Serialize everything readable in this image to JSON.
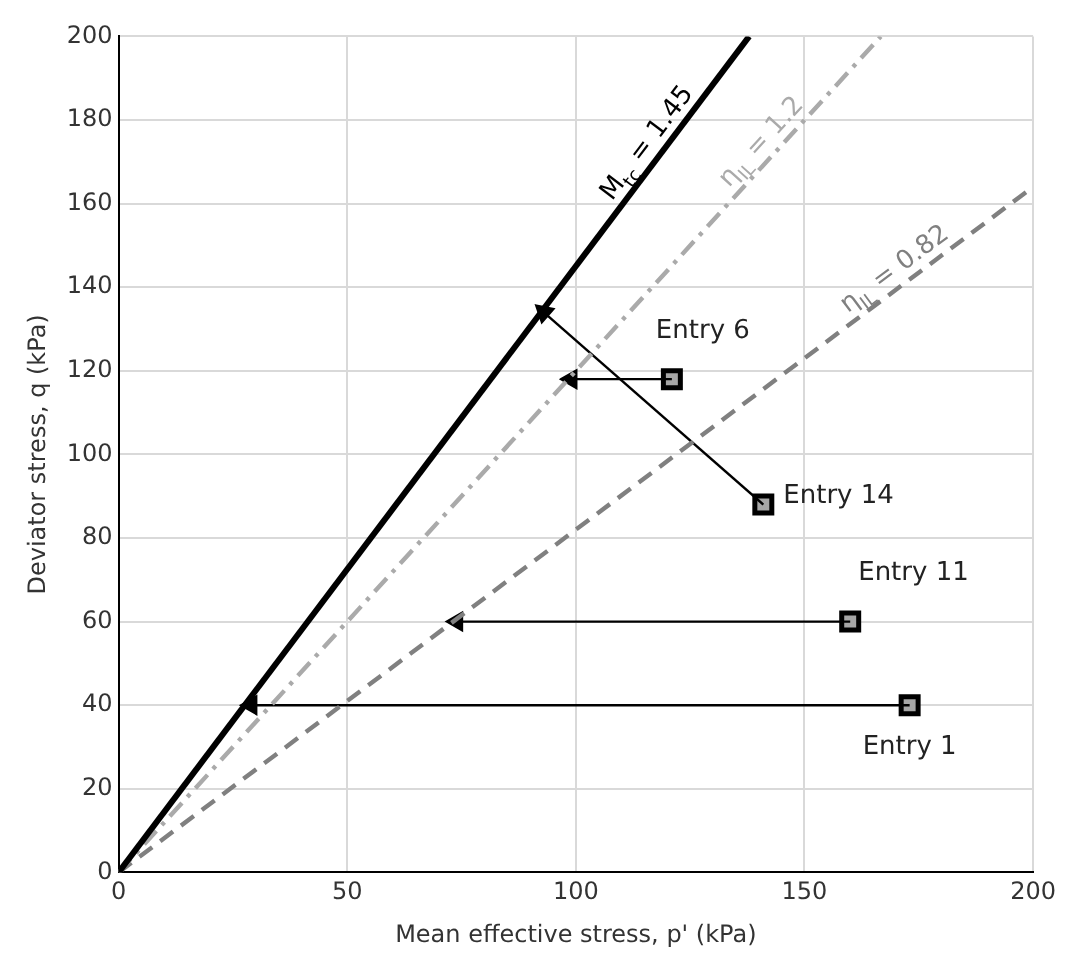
{
  "chart_data": {
    "type": "line",
    "xlabel": "Mean effective stress, p' (kPa)",
    "ylabel": "Deviator stress, q (kPa)",
    "xlim": [
      0,
      200
    ],
    "xticks": [
      0,
      50,
      100,
      150,
      200
    ],
    "ylim": [
      0,
      200
    ],
    "yticks": [
      0,
      20,
      40,
      60,
      80,
      100,
      120,
      140,
      160,
      180,
      200
    ],
    "grid": true,
    "legend": false,
    "series": [
      {
        "name": "M$_{tc}$ = 1.45",
        "color": "#000000",
        "line_style": "solid",
        "x": [
          0,
          137.9
        ],
        "values": [
          0,
          200
        ]
      },
      {
        "name": "η$_{IL}$ = 1.2",
        "color": "#aaaaaa",
        "line_style": "dashdot",
        "x": [
          0,
          166.7
        ],
        "values": [
          0,
          200
        ]
      },
      {
        "name": "η$_{IL}$ = 0.82",
        "color": "#808080",
        "line_style": "dashed",
        "x": [
          0,
          200
        ],
        "values": [
          0,
          164
        ]
      },
      {
        "color": "#000000",
        "x": [
          173,
          29
        ],
        "values": [
          40,
          40
        ]
      },
      {
        "color": "#000000",
        "x": [
          160,
          74
        ],
        "values": [
          60,
          60
        ]
      },
      {
        "color": "#000000",
        "x": [
          141,
          93
        ],
        "values": [
          88,
          134
        ]
      },
      {
        "color": "#000000",
        "x": [
          121,
          99
        ],
        "values": [
          118,
          118
        ]
      },
      {
        "type": "scatter",
        "color": "#a6a6a6",
        "marker": "square",
        "x": [
          173,
          160,
          141,
          121
        ],
        "values": [
          40,
          60,
          88,
          118
        ]
      }
    ],
    "annotations": [
      {
        "text": "Entry 1",
        "x": 173,
        "y": 40
      },
      {
        "text": "Entry 11",
        "x": 160,
        "y": 60
      },
      {
        "text": "Entry 14",
        "x": 141,
        "y": 88
      },
      {
        "text": "Entry 6",
        "x": 121,
        "y": 118
      }
    ]
  }
}
